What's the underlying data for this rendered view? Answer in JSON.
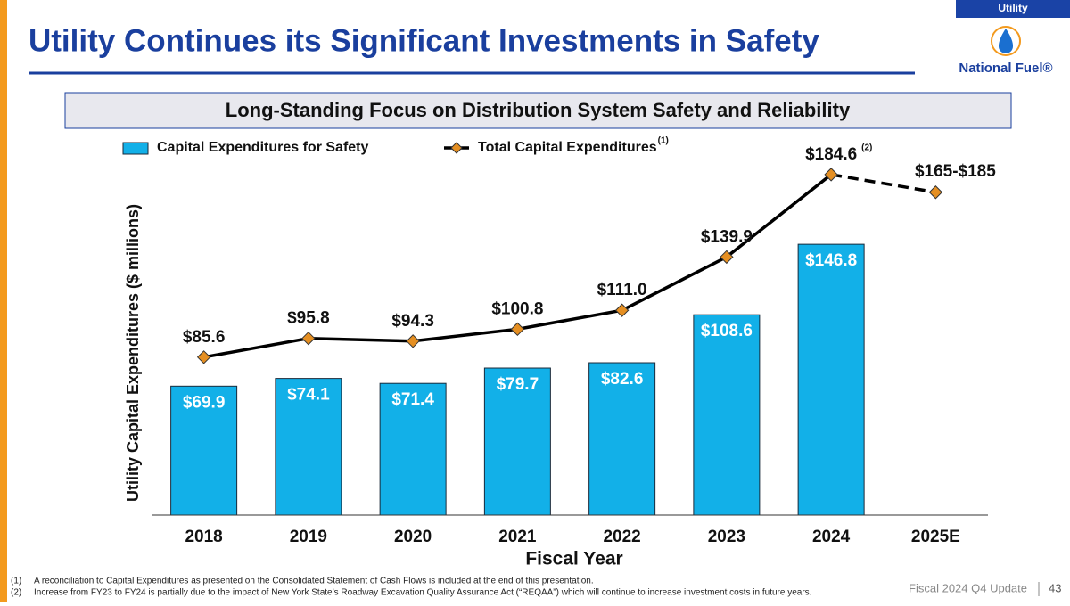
{
  "slide": {
    "tag": "Utility",
    "title": "Utility Continues its Significant Investments in Safety",
    "logo_text": "National Fuel®",
    "banner": "Long-Standing Focus on Distribution System Safety and Reliability",
    "footnotes": [
      {
        "marker": "(1)",
        "text": "A reconciliation to Capital Expenditures as presented on the Consolidated Statement of Cash Flows is included at the end of this presentation."
      },
      {
        "marker": "(2)",
        "text": "Increase from FY23 to FY24 is partially due to the impact of New York State’s Roadway Excavation Quality Assurance Act (“REQAA”) which will continue to increase investment costs in future years."
      }
    ],
    "footer": "Fiscal 2024 Q4 Update",
    "page_number": "43"
  },
  "chart_data": {
    "type": "combo",
    "x_label": "Fiscal Year",
    "y_label": "Utility Capital Expenditures ($ millions)",
    "categories": [
      "2018",
      "2019",
      "2020",
      "2021",
      "2022",
      "2023",
      "2024",
      "2025E"
    ],
    "ylim": [
      0,
      200
    ],
    "series": [
      {
        "name": "Capital Expenditures for Safety",
        "type": "bar",
        "color": "#12b0e8",
        "values": [
          69.9,
          74.1,
          71.4,
          79.7,
          82.6,
          108.6,
          146.8,
          null
        ],
        "value_labels": [
          "$69.9",
          "$74.1",
          "$71.4",
          "$79.7",
          "$82.6",
          "$108.6",
          "$146.8",
          null
        ]
      },
      {
        "name": "Total Capital Expenditures",
        "type": "line",
        "color": "#000000",
        "marker_color": "#e58f22",
        "name_note": "(1)",
        "dash_after": 6,
        "values": [
          85.6,
          95.8,
          94.3,
          100.8,
          111.0,
          139.9,
          184.6,
          175
        ],
        "value_labels": [
          "$85.6",
          "$95.8",
          "$94.3",
          "$100.8",
          "$111.0",
          "$139.9",
          "$184.6",
          null
        ]
      }
    ],
    "annotations": [
      {
        "text": "(2)",
        "index": 6
      },
      {
        "text": "$165-$185",
        "index": 7
      }
    ]
  }
}
